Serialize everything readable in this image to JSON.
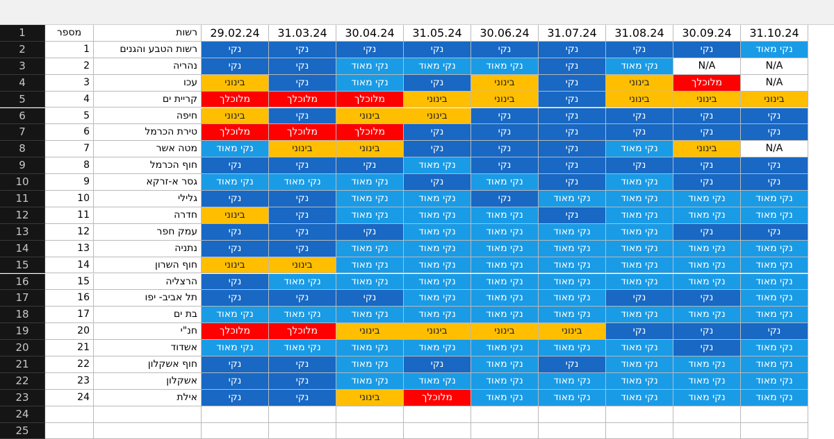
{
  "header": {
    "number": "מספר",
    "name": "רשות",
    "dates": [
      "29.02.24",
      "31.03.24",
      "30.04.24",
      "31.05.24",
      "30.06.24",
      "31.07.24",
      "31.08.24",
      "30.09.24",
      "31.10.24"
    ]
  },
  "row_numbers": [
    1,
    2,
    3,
    4,
    5,
    6,
    7,
    8,
    9,
    10,
    11,
    12,
    13,
    14,
    15,
    16,
    17,
    18,
    19,
    20,
    21,
    22,
    23,
    24,
    25
  ],
  "status_colors": {
    "נקי": {
      "bg": "#1868c4",
      "fg": "#ffffff"
    },
    "נקי מאוד": {
      "bg": "#1a9be6",
      "fg": "#ffffff"
    },
    "בינוני": {
      "bg": "#ffbf00",
      "fg": "#222222"
    },
    "מלוכלך": {
      "bg": "#ff0000",
      "fg": "#ffffff"
    },
    "N/A": {
      "bg": "#ffffff",
      "fg": "#000000"
    }
  },
  "rows": [
    {
      "number": 1,
      "name": "רשות הטבע והגנים",
      "statuses": [
        "נקי",
        "נקי",
        "נקי",
        "נקי",
        "נקי",
        "נקי",
        "נקי",
        "נקי",
        "נקי מאוד"
      ]
    },
    {
      "number": 2,
      "name": "נהריה",
      "statuses": [
        "נקי",
        "נקי",
        "נקי מאוד",
        "נקי מאוד",
        "נקי מאוד",
        "נקי",
        "נקי מאוד",
        "N/A",
        "N/A"
      ]
    },
    {
      "number": 3,
      "name": "עכו",
      "statuses": [
        "בינוני",
        "נקי",
        "נקי מאוד",
        "נקי",
        "בינוני",
        "נקי",
        "בינוני",
        "מלוכלך",
        "N/A"
      ]
    },
    {
      "number": 4,
      "name": "קריית ים",
      "statuses": [
        "מלוכלך",
        "מלוכלך",
        "מלוכלך",
        "בינוני",
        "בינוני",
        "נקי",
        "בינוני",
        "בינוני",
        "בינוני"
      ]
    },
    {
      "number": 5,
      "name": "חיפה",
      "statuses": [
        "בינוני",
        "נקי",
        "בינוני",
        "בינוני",
        "נקי",
        "נקי",
        "נקי",
        "נקי",
        "נקי"
      ]
    },
    {
      "number": 6,
      "name": "טירת הכרמל",
      "statuses": [
        "מלוכלך",
        "מלוכלך",
        "מלוכלך",
        "נקי",
        "נקי",
        "נקי",
        "נקי",
        "נקי",
        "נקי"
      ]
    },
    {
      "number": 7,
      "name": "מטה אשר",
      "statuses": [
        "נקי מאוד",
        "בינוני",
        "בינוני",
        "נקי",
        "נקי",
        "נקי",
        "נקי מאוד",
        "בינוני",
        "N/A"
      ]
    },
    {
      "number": 8,
      "name": "חוף הכרמל",
      "statuses": [
        "נקי",
        "נקי",
        "נקי",
        "נקי מאוד",
        "נקי",
        "נקי",
        "נקי",
        "נקי",
        "נקי"
      ]
    },
    {
      "number": 9,
      "name": "גסר א-זרקא",
      "statuses": [
        "נקי מאוד",
        "נקי מאוד",
        "נקי מאוד",
        "נקי",
        "נקי מאוד",
        "נקי",
        "נקי מאוד",
        "נקי",
        "נקי"
      ]
    },
    {
      "number": 10,
      "name": "גלילי",
      "statuses": [
        "נקי",
        "נקי",
        "נקי מאוד",
        "נקי מאוד",
        "נקי",
        "נקי מאוד",
        "נקי מאוד",
        "נקי מאוד",
        "נקי מאוד"
      ]
    },
    {
      "number": 11,
      "name": "חדרה",
      "statuses": [
        "בינוני",
        "נקי",
        "נקי מאוד",
        "נקי מאוד",
        "נקי מאוד",
        "נקי",
        "נקי מאוד",
        "נקי מאוד",
        "נקי מאוד"
      ]
    },
    {
      "number": 12,
      "name": "עמק חפר",
      "statuses": [
        "נקי",
        "נקי",
        "נקי",
        "נקי מאוד",
        "נקי מאוד",
        "נקי מאוד",
        "נקי מאוד",
        "נקי",
        "נקי"
      ]
    },
    {
      "number": 13,
      "name": "נתניה",
      "statuses": [
        "נקי",
        "נקי",
        "נקי מאוד",
        "נקי מאוד",
        "נקי מאוד",
        "נקי מאוד",
        "נקי מאוד",
        "נקי מאוד",
        "נקי מאוד"
      ]
    },
    {
      "number": 14,
      "name": "חוף השרון",
      "statuses": [
        "בינוני",
        "בינוני",
        "נקי מאוד",
        "נקי מאוד",
        "נקי מאוד",
        "נקי מאוד",
        "נקי מאוד",
        "נקי מאוד",
        "נקי מאוד"
      ]
    },
    {
      "number": 15,
      "name": "הרצליה",
      "statuses": [
        "נקי",
        "נקי מאוד",
        "נקי מאוד",
        "נקי מאוד",
        "נקי מאוד",
        "נקי מאוד",
        "נקי מאוד",
        "נקי מאוד",
        "נקי מאוד"
      ]
    },
    {
      "number": 16,
      "name": "תל אביב- יפו",
      "statuses": [
        "נקי",
        "נקי",
        "נקי",
        "נקי מאוד",
        "נקי מאוד",
        "נקי מאוד",
        "נקי",
        "נקי",
        "נקי מאוד"
      ]
    },
    {
      "number": 17,
      "name": "בת ים",
      "statuses": [
        "נקי מאוד",
        "נקי מאוד",
        "נקי מאוד",
        "נקי מאוד",
        "נקי מאוד",
        "נקי מאוד",
        "נקי מאוד",
        "נקי מאוד",
        "נקי מאוד"
      ]
    },
    {
      "number": 20,
      "name": "חנ\"י",
      "statuses": [
        "מלוכלך",
        "מלוכלך",
        "בינוני",
        "בינוני",
        "בינוני",
        "בינוני",
        "נקי",
        "נקי",
        "נקי"
      ]
    },
    {
      "number": 21,
      "name": "אשדוד",
      "statuses": [
        "נקי מאוד",
        "נקי מאוד",
        "נקי מאוד",
        "נקי מאוד",
        "נקי מאוד",
        "נקי מאוד",
        "נקי מאוד",
        "נקי",
        "נקי מאוד"
      ]
    },
    {
      "number": 22,
      "name": "חוף אשקלון",
      "statuses": [
        "נקי",
        "נקי",
        "נקי מאוד",
        "נקי",
        "נקי מאוד",
        "נקי",
        "נקי מאוד",
        "נקי מאוד",
        "נקי מאוד"
      ]
    },
    {
      "number": 23,
      "name": "אשקלון",
      "statuses": [
        "נקי",
        "נקי",
        "נקי מאוד",
        "נקי מאוד",
        "נקי מאוד",
        "נקי מאוד",
        "נקי מאוד",
        "נקי מאוד",
        "נקי מאוד"
      ]
    },
    {
      "number": 24,
      "name": "אילת",
      "statuses": [
        "נקי",
        "נקי",
        "בינוני",
        "מלוכלך",
        "נקי מאוד",
        "נקי מאוד",
        "נקי מאוד",
        "נקי מאוד",
        "נקי מאוד"
      ]
    }
  ]
}
